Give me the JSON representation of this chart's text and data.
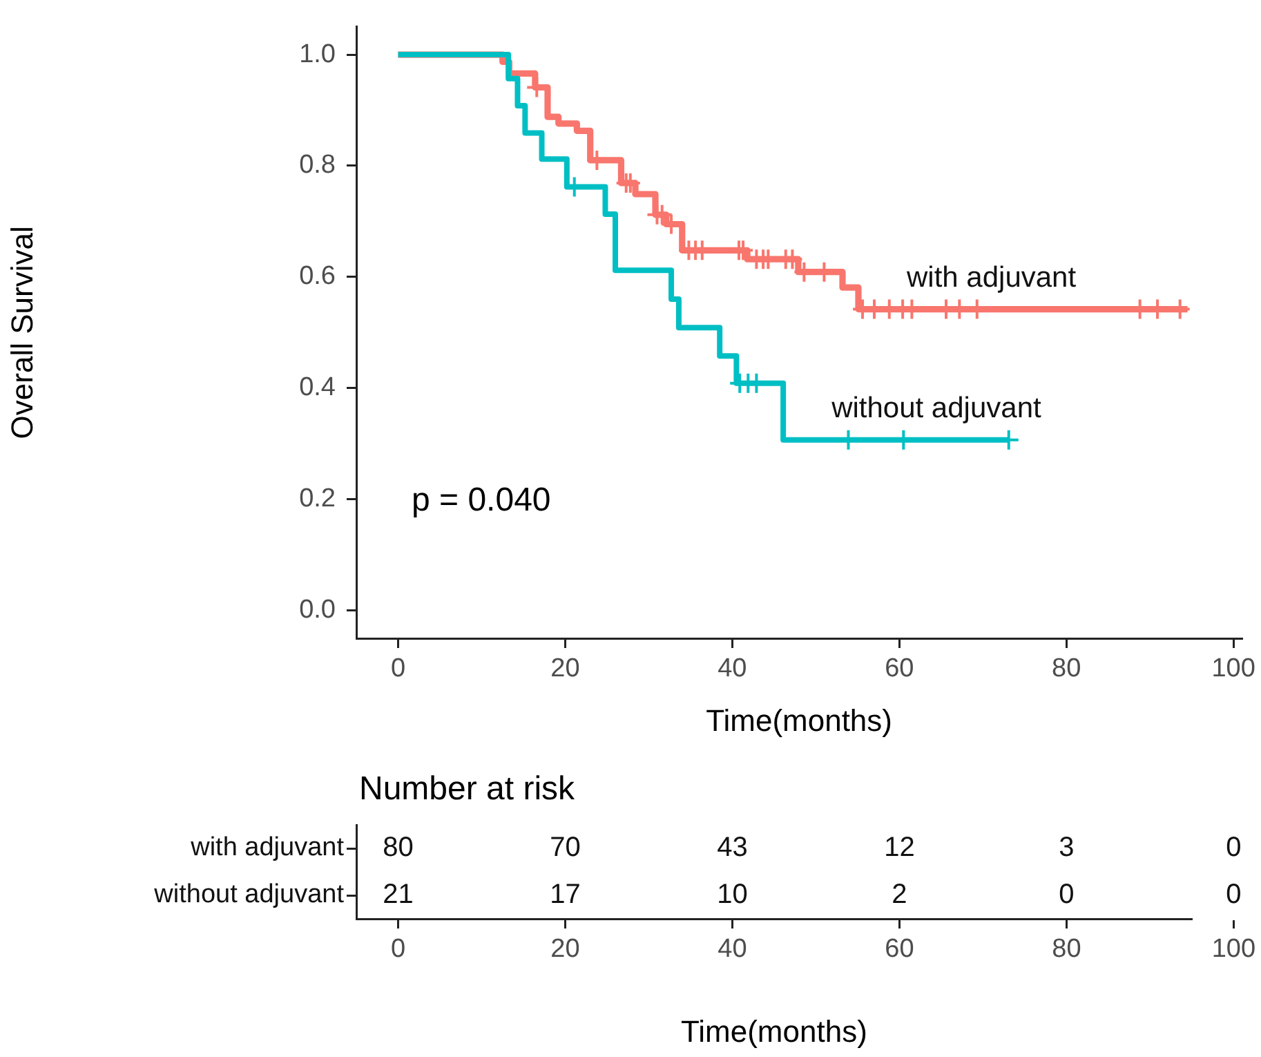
{
  "chart_data": [
    {
      "type": "step",
      "xlabel": "Time(months)",
      "ylabel": "Overall Survival",
      "xlim": [
        -5,
        101
      ],
      "xticks": [
        0,
        20,
        40,
        60,
        80,
        100
      ],
      "ylim": [
        -0.05,
        1.05
      ],
      "yticks": [
        {
          "value": 0,
          "label": "0.0"
        },
        0.2,
        0.4,
        0.6,
        0.8,
        {
          "value": 1,
          "label": "1.0"
        }
      ],
      "grid": false,
      "legend": false,
      "annotations": [
        "p = 0.040"
      ],
      "series": [
        {
          "name": "with adjuvant",
          "type": "step",
          "color": "#f8766d",
          "marker": "none",
          "x": [
            0,
            12.5,
            13.3,
            16.4,
            17.9,
            19.2,
            21.4,
            23.0,
            26.7,
            28.4,
            30.8,
            32.1,
            34.0,
            41.8,
            47.9,
            53.2,
            55.1,
            94.5
          ],
          "values": [
            1,
            0.987,
            0.966,
            0.941,
            0.888,
            0.876,
            0.863,
            0.81,
            0.769,
            0.749,
            0.712,
            0.695,
            0.648,
            0.632,
            0.609,
            0.581,
            0.542,
            0.542
          ]
        },
        {
          "name": "without adjuvant",
          "type": "step",
          "color": "#00bfc4",
          "marker": "none",
          "x": [
            0,
            13.2,
            14.3,
            15.2,
            17.2,
            20.2,
            24.8,
            26.0,
            32.7,
            33.6,
            38.5,
            40.5,
            46.1,
            73.1
          ],
          "values": [
            1,
            0.957,
            0.908,
            0.859,
            0.812,
            0.762,
            0.713,
            0.612,
            0.56,
            0.509,
            0.458,
            0.409,
            0.307,
            0.307
          ]
        },
        {
          "type": "scatter",
          "color": "#f8766d",
          "marker": "cross",
          "x": [
            16.6,
            23.8,
            27.3,
            27.8,
            31.0,
            31.6,
            32.7,
            34.8,
            35.6,
            36.4,
            40.8,
            41.3,
            42.9,
            43.7,
            44.3,
            46.4,
            47.2,
            48.6,
            51.0,
            55.6,
            57.0,
            58.8,
            60.4,
            61.5,
            65.6,
            67.2,
            69.3,
            88.8,
            90.9,
            93.6
          ],
          "values": [
            0.941,
            0.81,
            0.769,
            0.769,
            0.712,
            0.712,
            0.695,
            0.648,
            0.648,
            0.648,
            0.648,
            0.648,
            0.632,
            0.632,
            0.632,
            0.632,
            0.632,
            0.609,
            0.609,
            0.542,
            0.542,
            0.542,
            0.542,
            0.542,
            0.542,
            0.542,
            0.542,
            0.542,
            0.542,
            0.542
          ]
        },
        {
          "type": "scatter",
          "color": "#00bfc4",
          "marker": "cross",
          "x": [
            21.1,
            40.9,
            41.9,
            42.9,
            53.9,
            60.5,
            73.1
          ],
          "values": [
            0.762,
            0.409,
            0.409,
            0.409,
            0.307,
            0.307,
            0.307
          ]
        }
      ]
    },
    {
      "type": "heatmap",
      "title": "Number at risk",
      "data_labels": true,
      "xlabel": "Time(months)",
      "categories": [
        "0",
        "20",
        "40",
        "60",
        "80",
        "100"
      ],
      "y_categories": [
        "with adjuvant",
        "without adjuvant"
      ],
      "cells": [
        [
          80,
          70,
          43,
          12,
          3,
          0
        ],
        [
          21,
          17,
          10,
          2,
          0,
          0
        ]
      ]
    }
  ]
}
